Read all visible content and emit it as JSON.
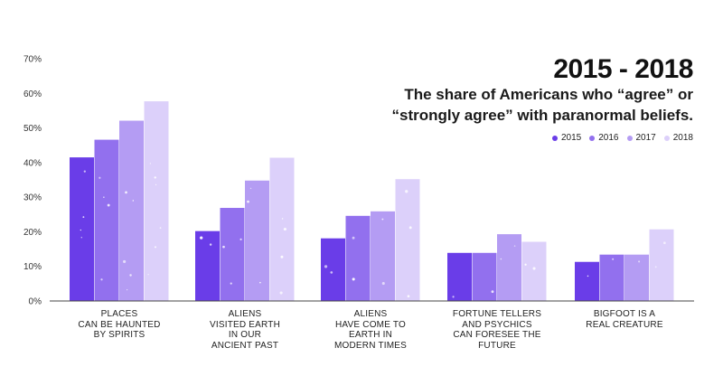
{
  "header": {
    "title": "2015 - 2018",
    "subtitle": "The share of Americans who “agree” or “strongly agree” with paranormal beliefs."
  },
  "legend": [
    {
      "label": "2015",
      "color": "#6a3de8"
    },
    {
      "label": "2016",
      "color": "#9270ee"
    },
    {
      "label": "2017",
      "color": "#b49cf3"
    },
    {
      "label": "2018",
      "color": "#dcd0fa"
    }
  ],
  "chart_data": {
    "type": "bar",
    "categories": [
      "PLACES\nCAN BE HAUNTED\nBY SPIRITS",
      "ALIENS\nVISITED EARTH\nIN OUR\nANCIENT PAST",
      "ALIENS\nHAVE COME TO\nEARTH IN\nMODERN TIMES",
      "FORTUNE TELLERS\nAND PSYCHICS\nCAN FORESEE THE\nFUTURE",
      "BIGFOOT IS A\nREAL CREATURE"
    ],
    "series": [
      {
        "name": "2015",
        "values": [
          41.5,
          20.2,
          18.1,
          13.9,
          11.3
        ]
      },
      {
        "name": "2016",
        "values": [
          46.6,
          26.9,
          24.6,
          13.9,
          13.4
        ]
      },
      {
        "name": "2017",
        "values": [
          52.1,
          34.8,
          25.9,
          19.3,
          13.4
        ]
      },
      {
        "name": "2018",
        "values": [
          57.7,
          41.4,
          35.2,
          17.1,
          20.7
        ]
      }
    ],
    "ylim": [
      0,
      70
    ],
    "yticks": [
      "0%",
      "10%",
      "20%",
      "30%",
      "40%",
      "50%",
      "60%",
      "70%"
    ],
    "grid": false,
    "legend_position": "top-right"
  }
}
